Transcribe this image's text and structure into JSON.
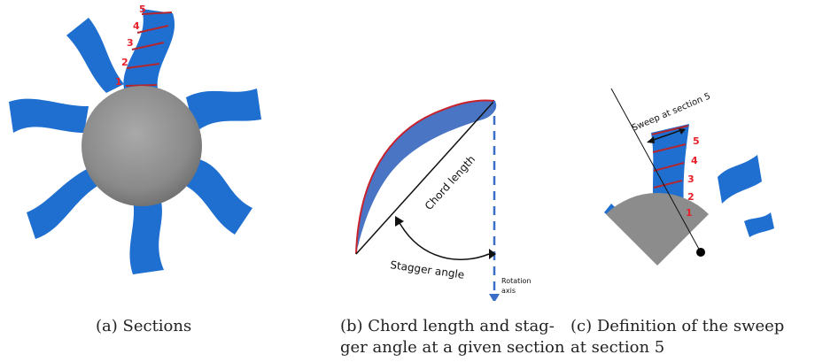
{
  "panel_a": {
    "section_labels": [
      "1",
      "2",
      "3",
      "4",
      "5"
    ],
    "caption": "(a) Sections"
  },
  "panel_b": {
    "chord_label": "Chord length",
    "stagger_label": "Stagger angle",
    "axis_label_line1": "Rotation",
    "axis_label_line2": "axis",
    "caption_line1": "(b) Chord length and stag-",
    "caption_line2": "ger angle at a given section"
  },
  "panel_c": {
    "sweep_label": "Sweep at section 5",
    "section_labels": [
      "1",
      "2",
      "3",
      "4",
      "5"
    ],
    "caption_line1": "(c) Definition of the sweep",
    "caption_line2": "at section 5"
  },
  "colors": {
    "blade": "#1f6fd1",
    "hub": "#8c8c8c",
    "section_line": "#b3262e",
    "label_red": "#e8202a"
  }
}
